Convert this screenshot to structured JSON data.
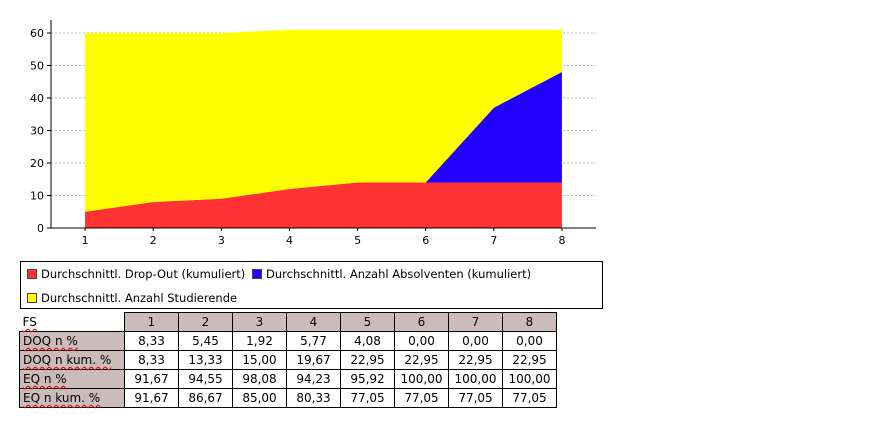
{
  "chart_data": {
    "type": "area",
    "stacked": true,
    "x": [
      1,
      2,
      3,
      4,
      5,
      6,
      7,
      8
    ],
    "series": [
      {
        "name": "Durchschnittl. Drop-Out (kumuliert)",
        "color": "#ff3333",
        "values": [
          5,
          8,
          9,
          12,
          14,
          14,
          14,
          14
        ]
      },
      {
        "name": "Durchschnittl. Anzahl Absolventen (kumuliert)",
        "color": "#2200ff",
        "values": [
          0,
          0,
          0,
          0,
          0,
          0,
          23,
          34
        ]
      },
      {
        "name": "Durchschnittl. Anzahl Studierende",
        "color": "#ffff00",
        "values": [
          55,
          52,
          51,
          49,
          47,
          47,
          24,
          13
        ]
      }
    ],
    "yticks": [
      0,
      10,
      20,
      30,
      40,
      50,
      60
    ],
    "ylim": [
      0,
      64
    ],
    "xlim": [
      0.5,
      8.5
    ],
    "grid": true,
    "legend_position": "bottom"
  },
  "table": {
    "corner": "FS",
    "columns": [
      "1",
      "2",
      "3",
      "4",
      "5",
      "6",
      "7",
      "8"
    ],
    "rows": [
      {
        "label": "DOQ n %",
        "values": [
          "8,33",
          "5,45",
          "1,92",
          "5,77",
          "4,08",
          "0,00",
          "0,00",
          "0,00"
        ]
      },
      {
        "label": "DOQ n kum. %",
        "values": [
          "8,33",
          "13,33",
          "15,00",
          "19,67",
          "22,95",
          "22,95",
          "22,95",
          "22,95"
        ]
      },
      {
        "label": "EQ n %",
        "values": [
          "91,67",
          "94,55",
          "98,08",
          "94,23",
          "95,92",
          "100,00",
          "100,00",
          "100,00"
        ]
      },
      {
        "label": "EQ n kum. %",
        "values": [
          "91,67",
          "86,67",
          "85,00",
          "80,33",
          "77,05",
          "77,05",
          "77,05",
          "77,05"
        ]
      }
    ]
  }
}
